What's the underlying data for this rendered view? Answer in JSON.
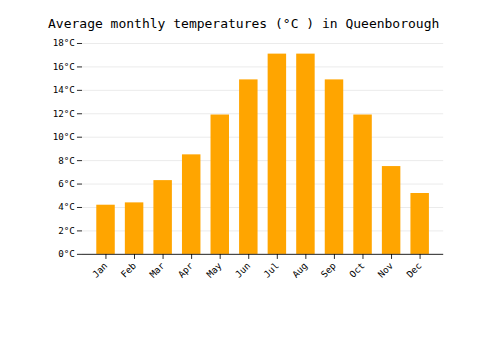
{
  "chart_data": {
    "type": "bar",
    "title": "Average monthly temperatures (°C ) in Queenborough",
    "categories": [
      "Jan",
      "Feb",
      "Mar",
      "Apr",
      "May",
      "Jun",
      "Jul",
      "Aug",
      "Sep",
      "Oct",
      "Nov",
      "Dec"
    ],
    "values": [
      4.2,
      4.4,
      6.3,
      8.5,
      11.9,
      14.9,
      17.1,
      17.1,
      14.9,
      11.9,
      7.5,
      5.2
    ],
    "color": "#FFA500",
    "ylim": [
      0,
      18
    ],
    "yticks": [
      {
        "value": 0,
        "label": "0°C"
      },
      {
        "value": 2,
        "label": "2°C"
      },
      {
        "value": 4,
        "label": "4°C"
      },
      {
        "value": 6,
        "label": "6°C"
      },
      {
        "value": 8,
        "label": "8°C"
      },
      {
        "value": 10,
        "label": "10°C"
      },
      {
        "value": 12,
        "label": "12°C"
      },
      {
        "value": 14,
        "label": "14°C"
      },
      {
        "value": 16,
        "label": "16°C"
      },
      {
        "value": 18,
        "label": "18°C"
      }
    ],
    "grid": true
  }
}
